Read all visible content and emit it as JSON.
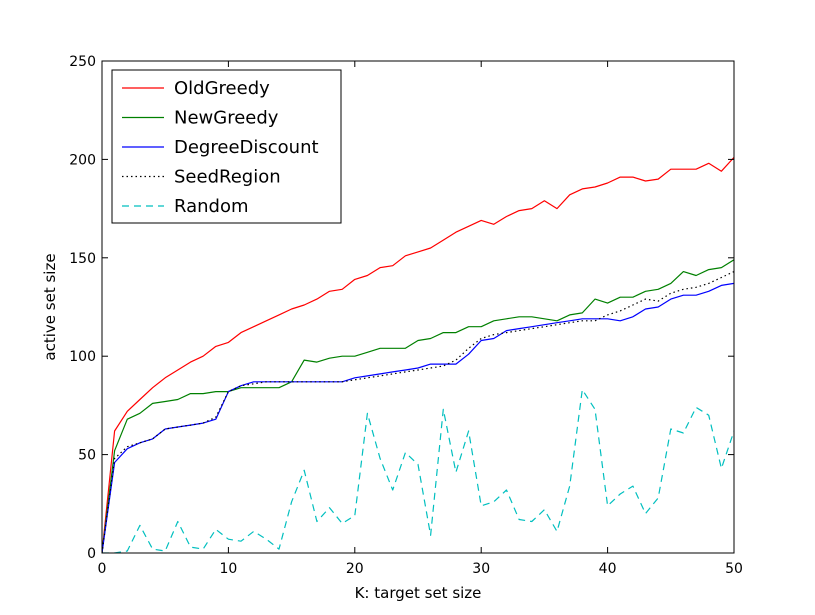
{
  "chart_data": {
    "type": "line",
    "xlabel": "K: target set size",
    "ylabel": "active set size",
    "xlim": [
      0,
      50
    ],
    "ylim": [
      0,
      250
    ],
    "xticks": [
      0,
      10,
      20,
      30,
      40,
      50
    ],
    "yticks": [
      0,
      50,
      100,
      150,
      200,
      250
    ],
    "legend_position": "top-left",
    "grid": false,
    "x": [
      0,
      1,
      2,
      3,
      4,
      5,
      6,
      7,
      8,
      9,
      10,
      11,
      12,
      13,
      14,
      15,
      16,
      17,
      18,
      19,
      20,
      21,
      22,
      23,
      24,
      25,
      26,
      27,
      28,
      29,
      30,
      31,
      32,
      33,
      34,
      35,
      36,
      37,
      38,
      39,
      40,
      41,
      42,
      43,
      44,
      45,
      46,
      47,
      48,
      49,
      50
    ],
    "series": [
      {
        "name": "OldGreedy",
        "color": "#ff0000",
        "style": "solid",
        "values": [
          0,
          62,
          72,
          78,
          84,
          89,
          93,
          97,
          100,
          105,
          107,
          112,
          115,
          118,
          121,
          124,
          126,
          129,
          133,
          134,
          139,
          141,
          145,
          146,
          151,
          153,
          155,
          159,
          163,
          166,
          169,
          167,
          171,
          174,
          175,
          179,
          175,
          182,
          185,
          186,
          188,
          191,
          191,
          189,
          190,
          195,
          195,
          195,
          198,
          194,
          201
        ]
      },
      {
        "name": "NewGreedy",
        "color": "#008000",
        "style": "solid",
        "values": [
          0,
          52,
          68,
          71,
          76,
          77,
          78,
          81,
          81,
          82,
          82,
          84,
          84,
          84,
          84,
          87,
          98,
          97,
          99,
          100,
          100,
          102,
          104,
          104,
          104,
          108,
          109,
          112,
          112,
          115,
          115,
          118,
          119,
          120,
          120,
          119,
          118,
          121,
          122,
          129,
          127,
          130,
          130,
          133,
          134,
          137,
          143,
          141,
          144,
          145,
          149
        ]
      },
      {
        "name": "DegreeDiscount",
        "color": "#0000ff",
        "style": "solid",
        "values": [
          0,
          46,
          53,
          56,
          58,
          63,
          64,
          65,
          66,
          68,
          82,
          85,
          87,
          87,
          87,
          87,
          87,
          87,
          87,
          87,
          89,
          90,
          91,
          92,
          93,
          94,
          96,
          96,
          96,
          101,
          108,
          109,
          113,
          114,
          115,
          116,
          117,
          118,
          119,
          119,
          119,
          118,
          120,
          124,
          125,
          129,
          131,
          131,
          133,
          136,
          137
        ]
      },
      {
        "name": "SeedRegion",
        "color": "#000000",
        "style": "dotted",
        "values": [
          0,
          48,
          54,
          56,
          58,
          63,
          64,
          65,
          66,
          69,
          82,
          85,
          86,
          87,
          87,
          87,
          87,
          87,
          87,
          87,
          88,
          89,
          90,
          91,
          92,
          93,
          94,
          95,
          98,
          104,
          109,
          111,
          112,
          113,
          114,
          115,
          116,
          117,
          118,
          118,
          121,
          123,
          126,
          129,
          128,
          132,
          134,
          135,
          137,
          140,
          143
        ]
      },
      {
        "name": "Random",
        "color": "#00bfbf",
        "style": "dashed",
        "values": [
          0,
          0,
          1,
          14,
          2,
          1,
          16,
          3,
          2,
          12,
          7,
          6,
          11,
          7,
          2,
          26,
          42,
          16,
          23,
          15,
          19,
          71,
          48,
          32,
          51,
          45,
          9,
          73,
          41,
          62,
          24,
          26,
          32,
          17,
          16,
          22,
          11,
          34,
          83,
          73,
          24,
          30,
          34,
          20,
          28,
          63,
          61,
          74,
          70,
          43,
          62
        ]
      }
    ]
  }
}
